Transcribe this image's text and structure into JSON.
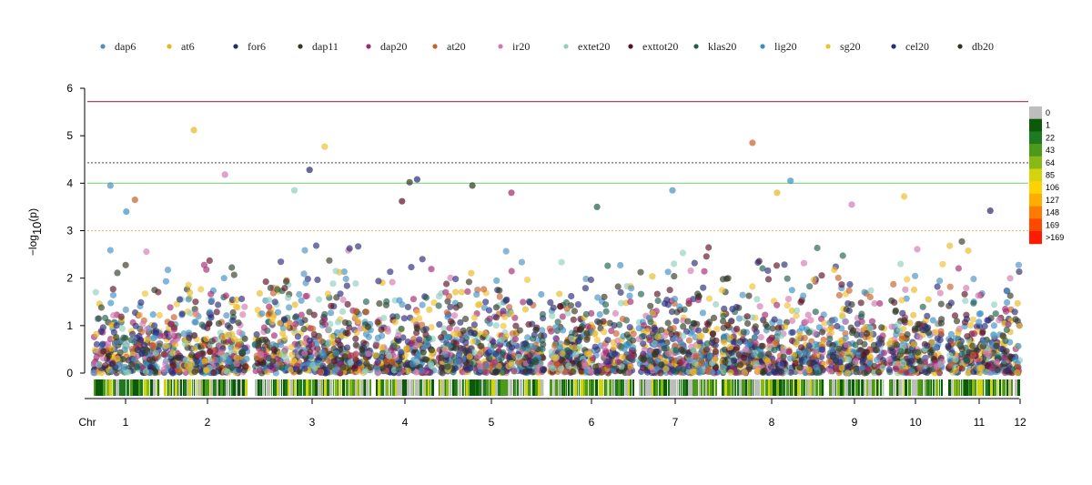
{
  "chart_data": {
    "type": "scatter",
    "ylabel": "−log10(p)",
    "ylim": [
      0,
      6
    ],
    "yticks": [
      "0",
      "1",
      "2",
      "3",
      "4",
      "5",
      "6"
    ],
    "chr_label": "Chr",
    "chromosomes": [
      "1",
      "2",
      "3",
      "4",
      "5",
      "6",
      "7",
      "8",
      "9",
      "10",
      "11",
      "12"
    ],
    "thresholds": [
      {
        "value": 5.72,
        "color": "#b24b4b",
        "style": "solid"
      },
      {
        "value": 4.43,
        "color": "#6b6b8a",
        "style": "dotted"
      },
      {
        "value": 4.0,
        "color": "#7fd67f",
        "style": "solid"
      },
      {
        "value": 3.0,
        "color": "#d8c98a",
        "style": "dotted"
      }
    ],
    "series": [
      {
        "name": "dap6",
        "color": "#4a90c0"
      },
      {
        "name": "at6",
        "color": "#e6b820"
      },
      {
        "name": "for6",
        "color": "#2a2a6e"
      },
      {
        "name": "dap11",
        "color": "#2e3a24"
      },
      {
        "name": "dap20",
        "color": "#a3286e"
      },
      {
        "name": "at20",
        "color": "#c8602a"
      },
      {
        "name": "ir20",
        "color": "#d27ab0"
      },
      {
        "name": "extet20",
        "color": "#8fd0c0"
      },
      {
        "name": "exttot20",
        "color": "#5a1024"
      },
      {
        "name": "klas20",
        "color": "#1e5e4e"
      },
      {
        "name": "lig20",
        "color": "#3a8fc6"
      },
      {
        "name": "sg20",
        "color": "#f0c030"
      },
      {
        "name": "cel20",
        "color": "#2a2a80"
      },
      {
        "name": "db20",
        "color": "#333322"
      }
    ],
    "highlighted_points": [
      {
        "chr": "1",
        "y": 3.95
      },
      {
        "chr": "1",
        "y": 3.65
      },
      {
        "chr": "1",
        "y": 3.4
      },
      {
        "chr": "2",
        "y": 5.12
      },
      {
        "chr": "2",
        "y": 4.18
      },
      {
        "chr": "3",
        "y": 4.77
      },
      {
        "chr": "3",
        "y": 4.28
      },
      {
        "chr": "3",
        "y": 3.85
      },
      {
        "chr": "4",
        "y": 4.08
      },
      {
        "chr": "4",
        "y": 4.02
      },
      {
        "chr": "4",
        "y": 3.62
      },
      {
        "chr": "5",
        "y": 3.95
      },
      {
        "chr": "5",
        "y": 3.8
      },
      {
        "chr": "6",
        "y": 3.5
      },
      {
        "chr": "7",
        "y": 3.85
      },
      {
        "chr": "8",
        "y": 4.85
      },
      {
        "chr": "8",
        "y": 4.05
      },
      {
        "chr": "8",
        "y": 3.8
      },
      {
        "chr": "9",
        "y": 3.55
      },
      {
        "chr": "10",
        "y": 3.72
      },
      {
        "chr": "11",
        "y": 3.42
      }
    ],
    "density_scale": {
      "labels": [
        "0",
        "1",
        "22",
        "43",
        "64",
        "85",
        "106",
        "127",
        "148",
        "169",
        ">169"
      ],
      "colors": [
        "#bdbdbd",
        "#0a5a0a",
        "#1f7a1f",
        "#4c9a1a",
        "#8ab816",
        "#d4d40e",
        "#ffd200",
        "#ffae00",
        "#ff7a00",
        "#ff4800",
        "#ff1a00"
      ]
    }
  }
}
